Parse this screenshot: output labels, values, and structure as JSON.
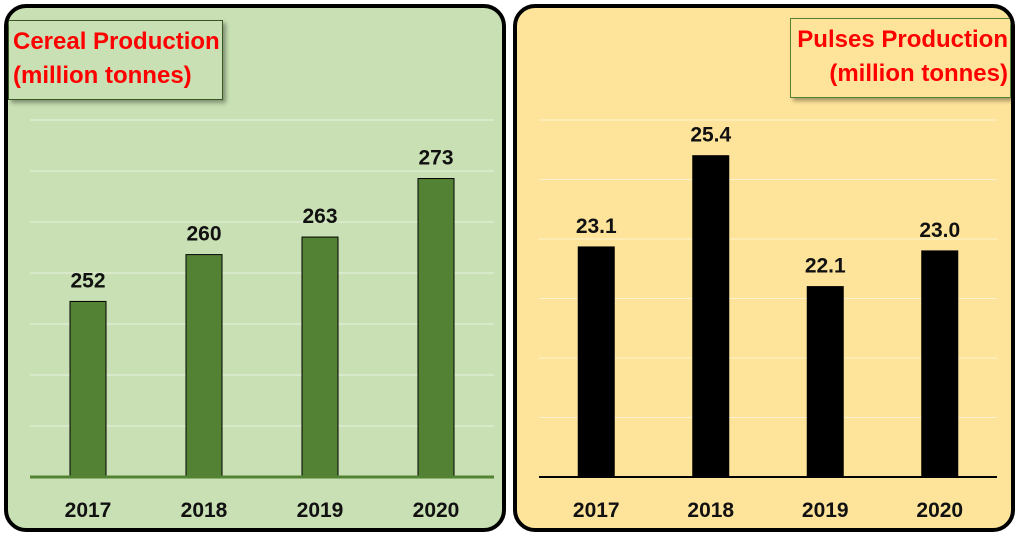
{
  "colors": {
    "cereal_bg": "#c8e0b4",
    "cereal_bar": "#548235",
    "pulses_bg": "#fee49a",
    "pulses_bar": "#000000",
    "title_text": "#ff0000"
  },
  "chart_data": [
    {
      "type": "bar",
      "title": "Cereal Production",
      "subtitle": "(million tonnes)",
      "categories": [
        "2017",
        "2018",
        "2019",
        "2020"
      ],
      "values": [
        252,
        260,
        263,
        273
      ],
      "data_labels": [
        "252",
        "260",
        "263",
        "273"
      ],
      "ylim": [
        222,
        283
      ],
      "grid": true,
      "legend": "none"
    },
    {
      "type": "bar",
      "title": "Pulses Production",
      "subtitle": "(million tonnes)",
      "categories": [
        "2017",
        "2018",
        "2019",
        "2020"
      ],
      "values": [
        23.1,
        25.4,
        22.1,
        23.0
      ],
      "data_labels": [
        "23.1",
        "25.4",
        "22.1",
        "23.0"
      ],
      "ylim": [
        17.3,
        26.3
      ],
      "grid": true,
      "legend": "none"
    }
  ]
}
